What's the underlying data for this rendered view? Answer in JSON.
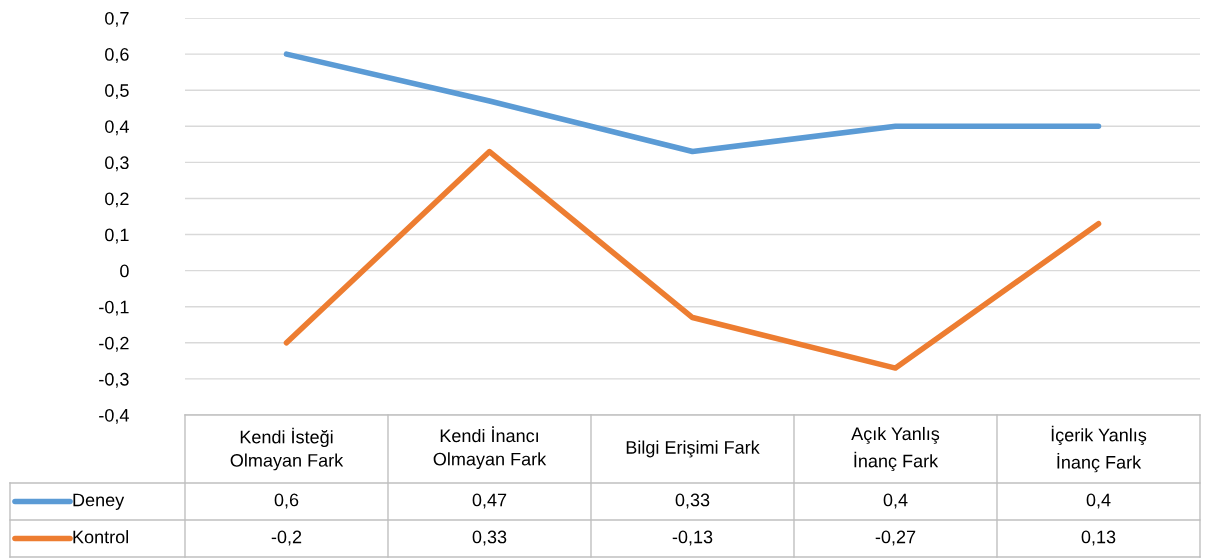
{
  "chart_data": {
    "type": "line",
    "categories": [
      "Kendi İsteği Olmayan Fark",
      "Kendi İnancı Olmayan Fark",
      "Bilgi Erişimi Fark",
      "Açık Yanlış İnanç Fark",
      "İçerik Yanlış İnanç Fark"
    ],
    "series": [
      {
        "name": "Deney",
        "color": "#5b9bd5",
        "values": [
          0.6,
          0.47,
          0.33,
          0.4,
          0.4
        ],
        "value_labels": [
          "0,6",
          "0,47",
          "0,33",
          "0,4",
          "0,4"
        ]
      },
      {
        "name": "Kontrol",
        "color": "#ed7d31",
        "values": [
          -0.2,
          0.33,
          -0.13,
          -0.27,
          0.13
        ],
        "value_labels": [
          "-0,2",
          "0,33",
          "-0,13",
          "-0,27",
          "0,13"
        ]
      }
    ],
    "ylim": [
      -0.4,
      0.7
    ],
    "yticks": [
      {
        "value": -0.4,
        "label": "-0,4"
      },
      {
        "value": -0.3,
        "label": "-0,3"
      },
      {
        "value": -0.2,
        "label": "-0,2"
      },
      {
        "value": -0.1,
        "label": "-0,1"
      },
      0,
      {
        "value": 0.1,
        "label": "0,1"
      },
      {
        "value": 0.2,
        "label": "0,2"
      },
      {
        "value": 0.3,
        "label": "0,3"
      },
      {
        "value": 0.4,
        "label": "0,4"
      },
      {
        "value": 0.5,
        "label": "0,5"
      },
      {
        "value": 0.6,
        "label": "0,6"
      },
      {
        "value": 0.7,
        "label": "0,7"
      }
    ],
    "grid": "y",
    "legend": "bottom left",
    "marker": "none",
    "line_style": "solid"
  }
}
